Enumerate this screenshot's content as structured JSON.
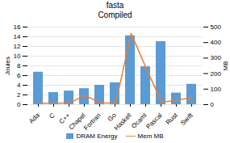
{
  "chart_data": {
    "type": "bar",
    "title": "fasta",
    "subtitle": "Compiled",
    "categories": [
      "Ada",
      "C",
      "C++",
      "Chapel",
      "Fortran",
      "Go",
      "Haskell",
      "Ocaml",
      "Pascal",
      "Rust",
      "Swift"
    ],
    "series": [
      {
        "name": "DRAM Energy",
        "type": "bar",
        "color": "#5b9bd5",
        "values": [
          6.7,
          2.5,
          2.8,
          3.3,
          4.0,
          4.5,
          14.2,
          7.8,
          13.0,
          2.4,
          4.2
        ]
      },
      {
        "name": "Mem MB",
        "type": "line",
        "color": "#ed7d31",
        "axis": "y2",
        "values": [
          10,
          8,
          12,
          60,
          10,
          10,
          460,
          230,
          15,
          30,
          45
        ]
      }
    ],
    "ylabel": "Joules",
    "y2label": "MB",
    "ylim": [
      0,
      16
    ],
    "yticks": [
      0,
      2,
      4,
      6,
      8,
      10,
      12,
      14,
      16
    ],
    "y2lim": [
      0,
      500
    ],
    "y2ticks": [
      0,
      100,
      200,
      300,
      400,
      500
    ],
    "grid": true,
    "legend": "bottom"
  }
}
